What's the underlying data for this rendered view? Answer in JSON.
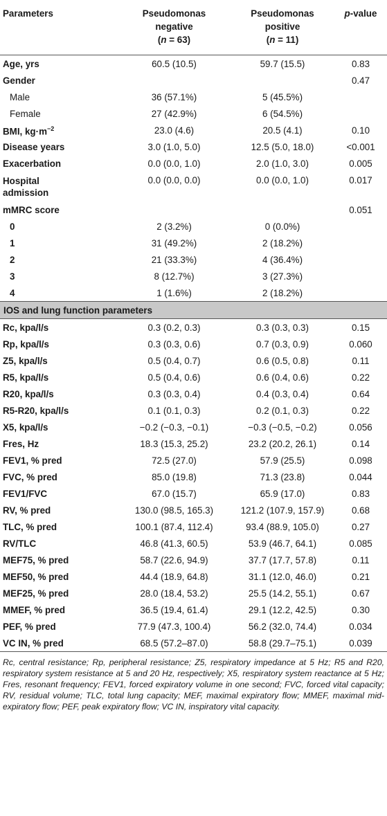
{
  "header": {
    "col1": "Parameters",
    "col2_line1": "Pseudomonas",
    "col2_line2": "negative",
    "col2_n_label": "n",
    "col2_n_value": "= 63",
    "col3_line1": "Pseudomonas",
    "col3_line2": "positive",
    "col3_n_label": "n",
    "col3_n_value": "= 11",
    "col4_p": "p",
    "col4_rest": "-value"
  },
  "rows_top": [
    {
      "name": "Age, yrs",
      "neg": "60.5 (10.5)",
      "pos": "59.7 (15.5)",
      "p": "0.83",
      "style": "bold"
    },
    {
      "name": "Gender",
      "neg": "",
      "pos": "",
      "p": "0.47",
      "style": "bold"
    },
    {
      "name": "Male",
      "neg": "36 (57.1%)",
      "pos": "5 (45.5%)",
      "p": "",
      "style": "sub"
    },
    {
      "name": "Female",
      "neg": "27 (42.9%)",
      "pos": "6 (54.5%)",
      "p": "",
      "style": "sub"
    }
  ],
  "bmi": {
    "name": "BMI, kg·m",
    "sup": "−2",
    "neg": "23.0 (4.6)",
    "pos": "20.5 (4.1)",
    "p": "0.10"
  },
  "rows_mid": [
    {
      "name": "Disease years",
      "neg": "3.0 (1.0, 5.0)",
      "pos": "12.5 (5.0, 18.0)",
      "p": "<0.001"
    },
    {
      "name": "Exacerbation",
      "neg": "0.0 (0.0, 1.0)",
      "pos": "2.0 (1.0, 3.0)",
      "p": "0.005"
    }
  ],
  "hospital": {
    "line1": "Hospital",
    "line2": "admission",
    "neg": "0.0 (0.0, 0.0)",
    "pos": "0.0 (0.0, 1.0)",
    "p": "0.017"
  },
  "mmrc": {
    "name": "mMRC score",
    "p": "0.051"
  },
  "mmrc_rows": [
    {
      "name": "0",
      "neg": "2 (3.2%)",
      "pos": "0 (0.0%)"
    },
    {
      "name": "1",
      "neg": "31 (49.2%)",
      "pos": "2 (18.2%)"
    },
    {
      "name": "2",
      "neg": "21 (33.3%)",
      "pos": "4 (36.4%)"
    },
    {
      "name": "3",
      "neg": "8 (12.7%)",
      "pos": "3 (27.3%)"
    },
    {
      "name": "4",
      "neg": "1 (1.6%)",
      "pos": "2 (18.2%)"
    }
  ],
  "section_title": "IOS and lung function parameters",
  "lung_rows": [
    {
      "name": "Rc, kpa/l/s",
      "neg": "0.3 (0.2, 0.3)",
      "pos": "0.3 (0.3, 0.3)",
      "p": "0.15"
    },
    {
      "name": "Rp, kpa/l/s",
      "neg": "0.3 (0.3, 0.6)",
      "pos": "0.7 (0.3, 0.9)",
      "p": "0.060"
    },
    {
      "name": "Z5, kpa/l/s",
      "neg": "0.5 (0.4, 0.7)",
      "pos": "0.6 (0.5, 0.8)",
      "p": "0.11"
    },
    {
      "name": "R5, kpa/l/s",
      "neg": "0.5 (0.4, 0.6)",
      "pos": "0.6 (0.4, 0.6)",
      "p": "0.22"
    },
    {
      "name": "R20, kpa/l/s",
      "neg": "0.3 (0.3, 0.4)",
      "pos": "0.4 (0.3, 0.4)",
      "p": "0.64"
    },
    {
      "name": "R5-R20, kpa/l/s",
      "neg": "0.1 (0.1, 0.3)",
      "pos": "0.2 (0.1, 0.3)",
      "p": "0.22"
    },
    {
      "name": "X5, kpa/l/s",
      "neg": "−0.2 (−0.3, −0.1)",
      "pos": "−0.3 (−0.5, −0.2)",
      "p": "0.056"
    },
    {
      "name": "Fres, Hz",
      "neg": "18.3 (15.3, 25.2)",
      "pos": "23.2 (20.2, 26.1)",
      "p": "0.14"
    },
    {
      "name": "FEV1, % pred",
      "neg": "72.5 (27.0)",
      "pos": "57.9 (25.5)",
      "p": "0.098"
    },
    {
      "name": "FVC, % pred",
      "neg": "85.0 (19.8)",
      "pos": "71.3 (23.8)",
      "p": "0.044"
    },
    {
      "name": "FEV1/FVC",
      "neg": "67.0 (15.7)",
      "pos": "65.9 (17.0)",
      "p": "0.83"
    },
    {
      "name": "RV, % pred",
      "neg": "130.0 (98.5, 165.3)",
      "pos": "121.2 (107.9, 157.9)",
      "p": "0.68"
    },
    {
      "name": "TLC, % pred",
      "neg": "100.1 (87.4, 112.4)",
      "pos": "93.4 (88.9, 105.0)",
      "p": "0.27"
    },
    {
      "name": "RV/TLC",
      "neg": "46.8 (41.3, 60.5)",
      "pos": "53.9 (46.7, 64.1)",
      "p": "0.085"
    },
    {
      "name": "MEF75, % pred",
      "neg": "58.7 (22.6, 94.9)",
      "pos": "37.7 (17.7, 57.8)",
      "p": "0.11"
    },
    {
      "name": "MEF50, % pred",
      "neg": "44.4 (18.9, 64.8)",
      "pos": "31.1 (12.0, 46.0)",
      "p": "0.21"
    },
    {
      "name": "MEF25, % pred",
      "neg": "28.0 (18.4, 53.2)",
      "pos": "25.5 (14.2, 55.1)",
      "p": "0.67"
    },
    {
      "name": "MMEF, % pred",
      "neg": "36.5 (19.4, 61.4)",
      "pos": "29.1 (12.2, 42.5)",
      "p": "0.30"
    },
    {
      "name": "PEF, % pred",
      "neg": "77.9 (47.3, 100.4)",
      "pos": "56.2 (32.0, 74.4)",
      "p": "0.034"
    },
    {
      "name": "VC IN, % pred",
      "neg": "68.5 (57.2–87.0)",
      "pos": "58.8 (29.7–75.1)",
      "p": "0.039"
    }
  ],
  "footnote": "Rc, central resistance; Rp, peripheral resistance; Z5, respiratory impedance at 5 Hz; R5 and R20, respiratory system resistance at 5 and 20 Hz, respectively; X5, respiratory system reactance at 5 Hz; Fres, resonant frequency; FEV1, forced expiratory volume in one second; FVC, forced vital capacity; RV, residual volume; TLC, total lung capacity; MEF, maximal expiratory flow; MMEF, maximal mid-expiratory flow; PEF, peak expiratory flow; VC IN, inspiratory vital capacity."
}
